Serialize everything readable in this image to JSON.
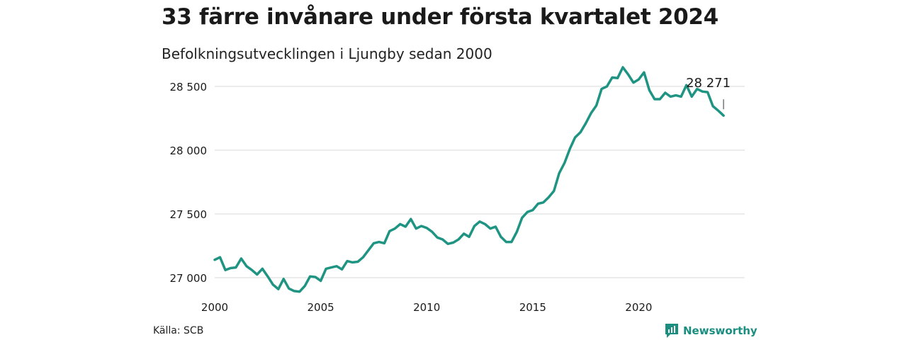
{
  "header": {
    "title": "33 färre invånare under första kvartalet 2024",
    "subtitle": "Befolkningsutvecklingen i Ljungby sedan 2000"
  },
  "footer": {
    "source": "Källa: SCB",
    "brand": "Newsworthy"
  },
  "colors": {
    "line": "#1f9483",
    "grid": "#d9d9d9",
    "brand": "#1a8f80"
  },
  "chart_data": {
    "type": "line",
    "title": "33 färre invånare under första kvartalet 2024",
    "subtitle": "Befolkningsutvecklingen i Ljungby sedan 2000",
    "xlim": [
      2000,
      2025
    ],
    "ylim": [
      26900,
      28650
    ],
    "x_ticks": [
      2000,
      2005,
      2010,
      2015,
      2020
    ],
    "x_tick_labels": [
      "2000",
      "2005",
      "2010",
      "2015",
      "2020"
    ],
    "y_ticks": [
      27000,
      27500,
      28000,
      28500
    ],
    "y_tick_labels": [
      "27 000",
      "27 500",
      "28 000",
      "28 500"
    ],
    "grid": "horizontal",
    "annotation": {
      "x": 2024.0,
      "y": 28271,
      "label": "28 271"
    },
    "series": [
      {
        "x": [
          2000.0,
          2000.25,
          2000.5,
          2000.75,
          2001.0,
          2001.25,
          2001.5,
          2001.75,
          2002.0,
          2002.25,
          2002.5,
          2002.75,
          2003.0,
          2003.25,
          2003.5,
          2003.75,
          2004.0,
          2004.25,
          2004.5,
          2004.75,
          2005.0,
          2005.25,
          2005.5,
          2005.75,
          2006.0,
          2006.25,
          2006.5,
          2006.75,
          2007.0,
          2007.25,
          2007.5,
          2007.75,
          2008.0,
          2008.25,
          2008.5,
          2008.75,
          2009.0,
          2009.25,
          2009.5,
          2009.75,
          2010.0,
          2010.25,
          2010.5,
          2010.75,
          2011.0,
          2011.25,
          2011.5,
          2011.75,
          2012.0,
          2012.25,
          2012.5,
          2012.75,
          2013.0,
          2013.25,
          2013.5,
          2013.75,
          2014.0,
          2014.25,
          2014.5,
          2014.75,
          2015.0,
          2015.25,
          2015.5,
          2015.75,
          2016.0,
          2016.25,
          2016.5,
          2016.75,
          2017.0,
          2017.25,
          2017.5,
          2017.75,
          2018.0,
          2018.25,
          2018.5,
          2018.75,
          2019.0,
          2019.25,
          2019.5,
          2019.75,
          2020.0,
          2020.25,
          2020.5,
          2020.75,
          2021.0,
          2021.25,
          2021.5,
          2021.75,
          2022.0,
          2022.25,
          2022.5,
          2022.75,
          2023.0,
          2023.25,
          2023.5,
          2023.75,
          2024.0
        ],
        "values": [
          27140,
          27160,
          27060,
          27075,
          27080,
          27150,
          27090,
          27060,
          27025,
          27070,
          27010,
          26945,
          26910,
          26990,
          26915,
          26895,
          26890,
          26935,
          27010,
          27005,
          26975,
          27070,
          27080,
          27090,
          27065,
          27130,
          27120,
          27125,
          27160,
          27215,
          27270,
          27280,
          27270,
          27365,
          27385,
          27420,
          27400,
          27460,
          27385,
          27405,
          27390,
          27360,
          27315,
          27300,
          27265,
          27275,
          27300,
          27345,
          27320,
          27405,
          27440,
          27420,
          27385,
          27400,
          27320,
          27280,
          27280,
          27360,
          27470,
          27515,
          27530,
          27580,
          27590,
          27630,
          27680,
          27820,
          27900,
          28010,
          28100,
          28140,
          28210,
          28290,
          28350,
          28480,
          28500,
          28570,
          28565,
          28650,
          28595,
          28530,
          28555,
          28610,
          28470,
          28400,
          28400,
          28450,
          28420,
          28430,
          28420,
          28510,
          28420,
          28480,
          28460,
          28455,
          28345,
          28310,
          28271
        ]
      }
    ]
  }
}
